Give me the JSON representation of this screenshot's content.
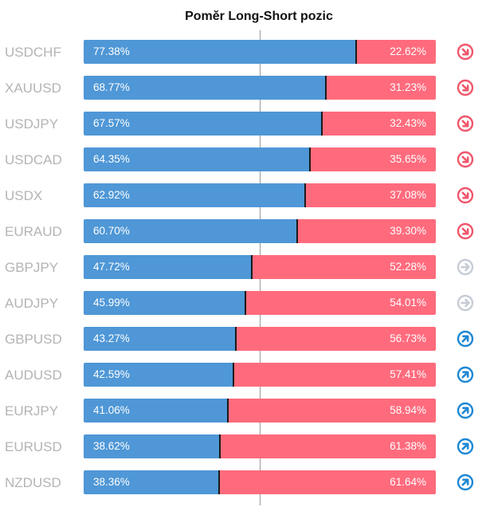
{
  "title": "Poměr Long-Short pozic",
  "colors": {
    "long": "#4f97d6",
    "short": "#ff6b7d",
    "sell": "#f0576c",
    "neutral": "#c6ccd6",
    "buy": "#1e88d4"
  },
  "chart_data": {
    "type": "bar",
    "title": "Poměr Long-Short pozic",
    "stacked": true,
    "categories": [
      "USDCHF",
      "XAUUSD",
      "USDJPY",
      "USDCAD",
      "USDX",
      "EURAUD",
      "GBPJPY",
      "AUDJPY",
      "GBPUSD",
      "AUDUSD",
      "EURJPY",
      "EURUSD",
      "NZDUSD"
    ],
    "series": [
      {
        "name": "",
        "values": [
          77.38,
          68.77,
          67.57,
          64.35,
          62.92,
          60.7,
          47.72,
          45.99,
          43.27,
          42.59,
          41.06,
          38.62,
          38.36
        ]
      },
      {
        "name": "",
        "values": [
          22.62,
          31.23,
          32.43,
          35.65,
          37.08,
          39.3,
          52.28,
          54.01,
          56.73,
          57.41,
          58.94,
          61.38,
          61.64
        ]
      }
    ],
    "long_labels": [
      "77.38%",
      "68.77%",
      "67.57%",
      "64.35%",
      "62.92%",
      "60.70%",
      "47.72%",
      "45.99%",
      "43.27%",
      "42.59%",
      "41.06%",
      "38.62%",
      "38.36%"
    ],
    "short_labels": [
      "22.62%",
      "31.23%",
      "32.43%",
      "35.65%",
      "37.08%",
      "39.30%",
      "52.28%",
      "54.01%",
      "56.73%",
      "57.41%",
      "58.94%",
      "61.38%",
      "61.64%"
    ],
    "signals": [
      "sell-arrow-icon",
      "sell-arrow-icon",
      "sell-arrow-icon",
      "sell-arrow-icon",
      "sell-arrow-icon",
      "sell-arrow-icon",
      "neutral-arrow-icon",
      "neutral-arrow-icon",
      "buy-arrow-icon",
      "buy-arrow-icon",
      "buy-arrow-icon",
      "buy-arrow-icon",
      "buy-arrow-icon"
    ],
    "xlim": [
      0,
      100
    ],
    "reference_line": 50
  }
}
